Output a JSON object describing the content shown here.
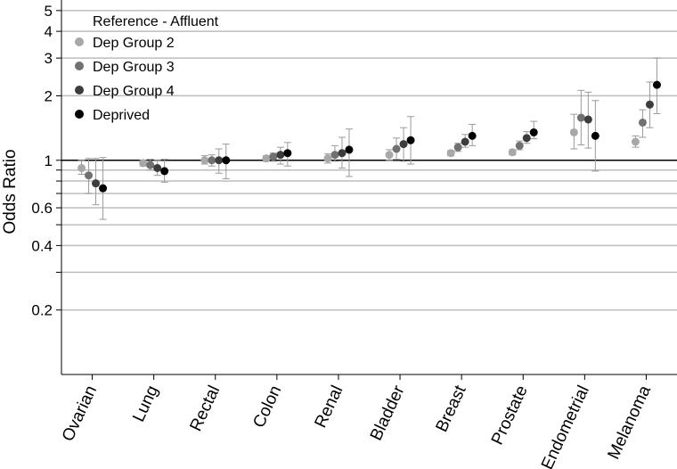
{
  "chart_data": {
    "type": "scatter",
    "ylabel": "Odds Ratio",
    "yscale": "log",
    "ylim": [
      0.1,
      5.6
    ],
    "yticks": [
      {
        "value": 5,
        "label": "5"
      },
      {
        "value": 4,
        "label": "4"
      },
      {
        "value": 3,
        "label": "3"
      },
      {
        "value": 2,
        "label": "2"
      },
      {
        "value": 1,
        "label": "1"
      },
      {
        "value": 0.6,
        "label": "0.6"
      },
      {
        "value": 0.4,
        "label": "0.4"
      },
      {
        "value": 0.2,
        "label": "0.2"
      }
    ],
    "minor_gridlines": [
      0.9,
      0.8,
      0.7,
      0.5,
      0.3
    ],
    "reference_line": 1,
    "grid": true,
    "legend": {
      "title": "Reference - Affluent",
      "position": "top-left"
    },
    "categories": [
      "Ovarian",
      "Lung",
      "Rectal",
      "Colon",
      "Renal",
      "Bladder",
      "Breast",
      "Prostate",
      "Endometrial",
      "Melanoma"
    ],
    "series": [
      {
        "name": "Dep Group 2",
        "color": "#a8a8a8",
        "values": [
          0.92,
          0.97,
          1.0,
          1.02,
          1.02,
          1.06,
          1.08,
          1.09,
          1.35,
          1.22
        ],
        "lower": [
          0.86,
          0.94,
          0.96,
          0.99,
          0.97,
          1.0,
          1.05,
          1.06,
          1.13,
          1.15
        ],
        "upper": [
          1.0,
          1.0,
          1.05,
          1.05,
          1.07,
          1.12,
          1.11,
          1.12,
          1.64,
          1.3
        ]
      },
      {
        "name": "Dep Group 3",
        "color": "#717171",
        "values": [
          0.85,
          0.95,
          1.0,
          1.04,
          1.06,
          1.13,
          1.15,
          1.17,
          1.58,
          1.5
        ],
        "lower": [
          0.7,
          0.9,
          0.94,
          0.99,
          0.99,
          1.01,
          1.1,
          1.12,
          1.18,
          1.28
        ],
        "upper": [
          1.02,
          1.01,
          1.06,
          1.08,
          1.17,
          1.27,
          1.2,
          1.23,
          2.12,
          1.72
        ]
      },
      {
        "name": "Dep Group 4",
        "color": "#3c3c3c",
        "values": [
          0.78,
          0.92,
          1.0,
          1.06,
          1.08,
          1.19,
          1.22,
          1.27,
          1.55,
          1.82
        ],
        "lower": [
          0.62,
          0.85,
          0.87,
          0.96,
          0.92,
          0.99,
          1.15,
          1.2,
          1.14,
          1.42
        ],
        "upper": [
          1.02,
          1.0,
          1.13,
          1.15,
          1.28,
          1.42,
          1.32,
          1.36,
          2.08,
          2.32
        ]
      },
      {
        "name": "Deprived",
        "color": "#000000",
        "values": [
          0.74,
          0.89,
          1.0,
          1.08,
          1.12,
          1.24,
          1.3,
          1.35,
          1.3,
          2.25
        ],
        "lower": [
          0.53,
          0.79,
          0.82,
          0.94,
          0.84,
          0.96,
          1.17,
          1.26,
          0.89,
          1.65
        ],
        "upper": [
          1.03,
          1.01,
          1.19,
          1.21,
          1.4,
          1.6,
          1.47,
          1.52,
          1.9,
          3.0
        ]
      }
    ]
  }
}
